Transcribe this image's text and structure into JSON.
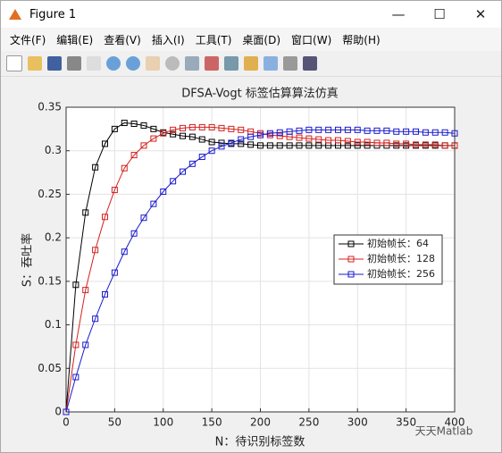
{
  "window": {
    "title": "Figure 1",
    "menu": [
      "文件(F)",
      "编辑(E)",
      "查看(V)",
      "插入(I)",
      "工具(T)",
      "桌面(D)",
      "窗口(W)",
      "帮助(H)"
    ]
  },
  "watermark": "天天Matlab",
  "chart_data": {
    "type": "line",
    "title": "DFSA-Vogt 标签估算算法仿真",
    "x_label": "N：待识别标签数",
    "y_label": "S：吞吐率",
    "x": [
      0,
      10,
      20,
      30,
      40,
      50,
      60,
      70,
      80,
      90,
      100,
      110,
      120,
      130,
      140,
      150,
      160,
      170,
      180,
      190,
      200,
      210,
      220,
      230,
      240,
      250,
      260,
      270,
      280,
      290,
      300,
      310,
      320,
      330,
      340,
      350,
      360,
      370,
      380,
      390,
      400
    ],
    "series": [
      {
        "name": "初始帧长：64",
        "color": "#000000",
        "values": [
          0,
          0.146,
          0.229,
          0.281,
          0.308,
          0.325,
          0.332,
          0.331,
          0.329,
          0.325,
          0.321,
          0.319,
          0.317,
          0.316,
          0.313,
          0.31,
          0.309,
          0.308,
          0.308,
          0.307,
          0.306,
          0.306,
          0.306,
          0.306,
          0.306,
          0.306,
          0.306,
          0.306,
          0.306,
          0.306,
          0.306,
          0.306,
          0.306,
          0.306,
          0.306,
          0.306,
          0.306,
          0.306,
          0.306,
          0.306,
          0.306
        ]
      },
      {
        "name": "初始帧长：128",
        "color": "#d42020",
        "values": [
          0,
          0.077,
          0.14,
          0.186,
          0.224,
          0.255,
          0.28,
          0.295,
          0.306,
          0.314,
          0.32,
          0.324,
          0.326,
          0.327,
          0.327,
          0.327,
          0.326,
          0.325,
          0.324,
          0.322,
          0.32,
          0.318,
          0.317,
          0.316,
          0.315,
          0.314,
          0.313,
          0.312,
          0.312,
          0.311,
          0.31,
          0.31,
          0.309,
          0.309,
          0.308,
          0.308,
          0.307,
          0.307,
          0.307,
          0.306,
          0.306
        ]
      },
      {
        "name": "初始帧长：256",
        "color": "#1a1acc",
        "values": [
          0,
          0.04,
          0.077,
          0.107,
          0.135,
          0.16,
          0.184,
          0.205,
          0.223,
          0.239,
          0.253,
          0.265,
          0.276,
          0.285,
          0.293,
          0.3,
          0.305,
          0.309,
          0.313,
          0.316,
          0.318,
          0.32,
          0.321,
          0.322,
          0.323,
          0.324,
          0.324,
          0.324,
          0.324,
          0.324,
          0.324,
          0.323,
          0.323,
          0.323,
          0.322,
          0.322,
          0.322,
          0.321,
          0.321,
          0.321,
          0.32
        ]
      }
    ],
    "xlim": [
      0,
      400
    ],
    "xticks": [
      0,
      50,
      100,
      150,
      200,
      250,
      300,
      350,
      400
    ],
    "ylim": [
      0,
      0.35
    ],
    "yticks": [
      0,
      0.05,
      0.1,
      0.15,
      0.2,
      0.25,
      0.3,
      0.35
    ],
    "grid": true,
    "marker": "square",
    "legend": "right"
  }
}
